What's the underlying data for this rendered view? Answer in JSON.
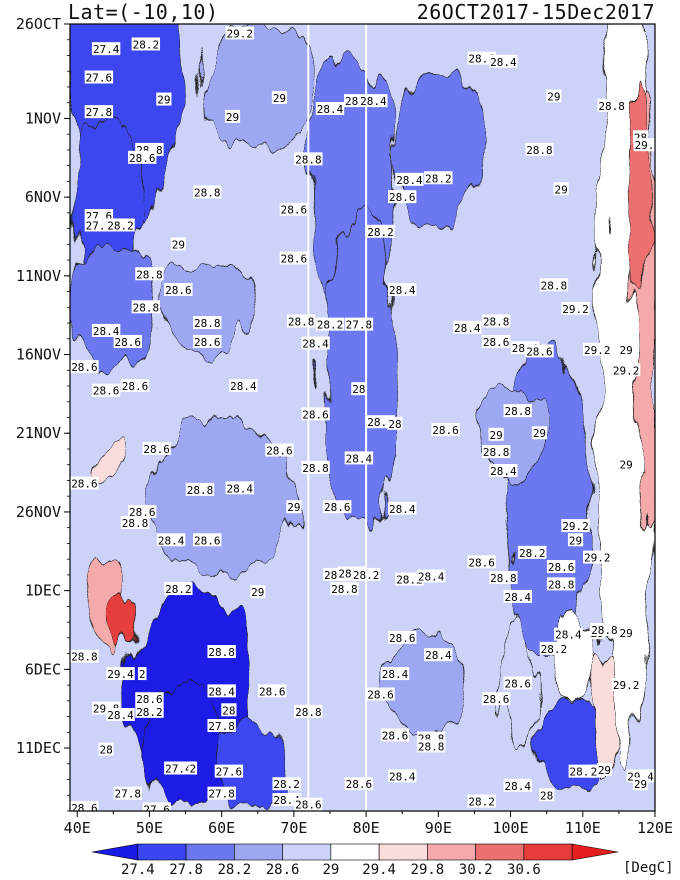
{
  "header": {
    "left": "Lat=(-10,10)",
    "right": "26OCT2017-15Dec2017"
  },
  "chart_data": {
    "type": "heatmap",
    "title": "Lat=(-10,10)",
    "subtitle": "26OCT2017-15Dec2017",
    "x_ticks": [
      "40E",
      "50E",
      "60E",
      "70E",
      "80E",
      "90E",
      "100E",
      "110E",
      "120E"
    ],
    "x_tick_values": [
      40,
      50,
      60,
      70,
      80,
      90,
      100,
      110,
      120
    ],
    "y_ticks": [
      "26OCT",
      "1NOV",
      "6NOV",
      "11NOV",
      "16NOV",
      "21NOV",
      "26NOV",
      "1DEC",
      "6DEC",
      "11DEC"
    ],
    "y_tick_values": [
      0,
      6,
      11,
      16,
      21,
      26,
      31,
      36,
      41,
      46
    ],
    "xlim": [
      39,
      120
    ],
    "ylim": [
      0,
      50
    ],
    "colorbar": {
      "levels": [
        "27.4",
        "27.8",
        "28.2",
        "28.6",
        "29",
        "29.4",
        "29.8",
        "30.2",
        "30.6"
      ],
      "unit": "[DegC]",
      "colors": [
        "#1a1ae6",
        "#3c46f0",
        "#6c78f0",
        "#9ea8f2",
        "#ccd2f8",
        "#ffffff",
        "#fadcdc",
        "#f4aaaa",
        "#ec7070",
        "#e63c3c",
        "#e61e1e"
      ]
    },
    "reference_lines_x": [
      72,
      80
    ],
    "contour_labels": [
      {
        "x": 44,
        "d": 1.6,
        "t": "27.4"
      },
      {
        "x": 49.5,
        "d": 1.3,
        "t": "28.2"
      },
      {
        "x": 62.5,
        "d": 0.6,
        "t": "29.2"
      },
      {
        "x": 43,
        "d": 3.4,
        "t": "27.6"
      },
      {
        "x": 43,
        "d": 5.6,
        "t": "27.8"
      },
      {
        "x": 52,
        "d": 4.8,
        "t": "29"
      },
      {
        "x": 61.5,
        "d": 5.9,
        "t": "29"
      },
      {
        "x": 68,
        "d": 4.7,
        "t": "29"
      },
      {
        "x": 75,
        "d": 5.4,
        "t": "28.4"
      },
      {
        "x": 78,
        "d": 4.9,
        "t": "28"
      },
      {
        "x": 81,
        "d": 4.9,
        "t": "28.4"
      },
      {
        "x": 96,
        "d": 2.2,
        "t": "28.8"
      },
      {
        "x": 99,
        "d": 2.4,
        "t": "28.4"
      },
      {
        "x": 106,
        "d": 4.6,
        "t": "29"
      },
      {
        "x": 114,
        "d": 5.2,
        "t": "28.8"
      },
      {
        "x": 50,
        "d": 8.0,
        "t": "28.8"
      },
      {
        "x": 49,
        "d": 8.5,
        "t": "28.6"
      },
      {
        "x": 72,
        "d": 8.6,
        "t": "28.8"
      },
      {
        "x": 104,
        "d": 8.0,
        "t": "28.8"
      },
      {
        "x": 118,
        "d": 7.2,
        "t": "28"
      },
      {
        "x": 119,
        "d": 7.7,
        "t": "29.6"
      },
      {
        "x": 86,
        "d": 9.9,
        "t": "28.4"
      },
      {
        "x": 90,
        "d": 9.8,
        "t": "28.2"
      },
      {
        "x": 85,
        "d": 11.0,
        "t": "28.6"
      },
      {
        "x": 107,
        "d": 10.5,
        "t": "29"
      },
      {
        "x": 58,
        "d": 10.7,
        "t": "28.8"
      },
      {
        "x": 70,
        "d": 11.8,
        "t": "28.6"
      },
      {
        "x": 43,
        "d": 12.2,
        "t": "27.6"
      },
      {
        "x": 43,
        "d": 12.8,
        "t": "27.7"
      },
      {
        "x": 46,
        "d": 12.8,
        "t": "28.2"
      },
      {
        "x": 54,
        "d": 14.0,
        "t": "29"
      },
      {
        "x": 82,
        "d": 13.2,
        "t": "28.2"
      },
      {
        "x": 70,
        "d": 14.9,
        "t": "28.6"
      },
      {
        "x": 50,
        "d": 15.9,
        "t": "28.8"
      },
      {
        "x": 54,
        "d": 16.9,
        "t": "28.6"
      },
      {
        "x": 85,
        "d": 16.9,
        "t": "28.4"
      },
      {
        "x": 106,
        "d": 16.6,
        "t": "28.8"
      },
      {
        "x": 49.5,
        "d": 18.0,
        "t": "28.8"
      },
      {
        "x": 109,
        "d": 18.1,
        "t": "29.2"
      },
      {
        "x": 58,
        "d": 19.0,
        "t": "28.8"
      },
      {
        "x": 71,
        "d": 18.9,
        "t": "28.8"
      },
      {
        "x": 75,
        "d": 19.1,
        "t": "28.2"
      },
      {
        "x": 79,
        "d": 19.1,
        "t": "27.8"
      },
      {
        "x": 94,
        "d": 19.3,
        "t": "28.4"
      },
      {
        "x": 98,
        "d": 18.9,
        "t": "28.8"
      },
      {
        "x": 44,
        "d": 19.5,
        "t": "28.4"
      },
      {
        "x": 47,
        "d": 20.2,
        "t": "28.6"
      },
      {
        "x": 58,
        "d": 20.2,
        "t": "28.6"
      },
      {
        "x": 73,
        "d": 20.3,
        "t": "28.4"
      },
      {
        "x": 98,
        "d": 20.2,
        "t": "28.6"
      },
      {
        "x": 102,
        "d": 20.6,
        "t": "28.6"
      },
      {
        "x": 104,
        "d": 20.8,
        "t": "28.6"
      },
      {
        "x": 112,
        "d": 20.7,
        "t": "29.2"
      },
      {
        "x": 116,
        "d": 20.7,
        "t": "29"
      },
      {
        "x": 41,
        "d": 21.8,
        "t": "28.6"
      },
      {
        "x": 116,
        "d": 22.0,
        "t": "29.2"
      },
      {
        "x": 44,
        "d": 23.3,
        "t": "28.6"
      },
      {
        "x": 48,
        "d": 23.0,
        "t": "28.6"
      },
      {
        "x": 63,
        "d": 23.0,
        "t": "28.4"
      },
      {
        "x": 79,
        "d": 23.2,
        "t": "28"
      },
      {
        "x": 73,
        "d": 24.8,
        "t": "28.6"
      },
      {
        "x": 82,
        "d": 25.3,
        "t": "28.6"
      },
      {
        "x": 101,
        "d": 24.6,
        "t": "28.8"
      },
      {
        "x": 84,
        "d": 25.4,
        "t": "28"
      },
      {
        "x": 91,
        "d": 25.8,
        "t": "28.6"
      },
      {
        "x": 98,
        "d": 26.1,
        "t": "29"
      },
      {
        "x": 104,
        "d": 26.0,
        "t": "29"
      },
      {
        "x": 51,
        "d": 27.0,
        "t": "28.6"
      },
      {
        "x": 68,
        "d": 27.1,
        "t": "28.6"
      },
      {
        "x": 98,
        "d": 27.2,
        "t": "28.8"
      },
      {
        "x": 79,
        "d": 27.6,
        "t": "28.4"
      },
      {
        "x": 73,
        "d": 28.2,
        "t": "28.8"
      },
      {
        "x": 116,
        "d": 28.0,
        "t": "29"
      },
      {
        "x": 99,
        "d": 28.4,
        "t": "28.4"
      },
      {
        "x": 41,
        "d": 29.2,
        "t": "28.6"
      },
      {
        "x": 57,
        "d": 29.6,
        "t": "28.8"
      },
      {
        "x": 62.5,
        "d": 29.5,
        "t": "28.4"
      },
      {
        "x": 70,
        "d": 30.7,
        "t": "29"
      },
      {
        "x": 76,
        "d": 30.7,
        "t": "28.6"
      },
      {
        "x": 85,
        "d": 30.8,
        "t": "28.4"
      },
      {
        "x": 49,
        "d": 31.0,
        "t": "28.6"
      },
      {
        "x": 48,
        "d": 31.7,
        "t": "28.8"
      },
      {
        "x": 109,
        "d": 31.9,
        "t": "29.2"
      },
      {
        "x": 53,
        "d": 32.8,
        "t": "28.4"
      },
      {
        "x": 58,
        "d": 32.8,
        "t": "28.6"
      },
      {
        "x": 109,
        "d": 32.8,
        "t": "29"
      },
      {
        "x": 103,
        "d": 33.6,
        "t": "28.2"
      },
      {
        "x": 112,
        "d": 33.9,
        "t": "29.2"
      },
      {
        "x": 96,
        "d": 34.2,
        "t": "28.6"
      },
      {
        "x": 107,
        "d": 34.5,
        "t": "28.6"
      },
      {
        "x": 76,
        "d": 35.0,
        "t": "28.6"
      },
      {
        "x": 78,
        "d": 34.9,
        "t": "28.4"
      },
      {
        "x": 80,
        "d": 35.0,
        "t": "28.2"
      },
      {
        "x": 86,
        "d": 35.3,
        "t": "28.2"
      },
      {
        "x": 89,
        "d": 35.1,
        "t": "28.4"
      },
      {
        "x": 99,
        "d": 35.2,
        "t": "28.8"
      },
      {
        "x": 107,
        "d": 35.6,
        "t": "28.8"
      },
      {
        "x": 54,
        "d": 35.9,
        "t": "28.2"
      },
      {
        "x": 77,
        "d": 35.9,
        "t": "28.8"
      },
      {
        "x": 65,
        "d": 36.1,
        "t": "29"
      },
      {
        "x": 101,
        "d": 36.4,
        "t": "28.4"
      },
      {
        "x": 108,
        "d": 38.8,
        "t": "28.4"
      },
      {
        "x": 112,
        "d": 38.7,
        "t": "29"
      },
      {
        "x": 113,
        "d": 38.5,
        "t": "28.8"
      },
      {
        "x": 116,
        "d": 38.7,
        "t": "29"
      },
      {
        "x": 85,
        "d": 39.0,
        "t": "28.6"
      },
      {
        "x": 106,
        "d": 39.7,
        "t": "28.2"
      },
      {
        "x": 60,
        "d": 39.9,
        "t": "28.8"
      },
      {
        "x": 90,
        "d": 40.1,
        "t": "28.4"
      },
      {
        "x": 41,
        "d": 40.2,
        "t": "28.8"
      },
      {
        "x": 84,
        "d": 41.3,
        "t": "28.4"
      },
      {
        "x": 46,
        "d": 41.3,
        "t": "29.4"
      },
      {
        "x": 49,
        "d": 41.3,
        "t": "2"
      },
      {
        "x": 101,
        "d": 41.9,
        "t": "28.6"
      },
      {
        "x": 116,
        "d": 42.0,
        "t": "29.2"
      },
      {
        "x": 60,
        "d": 42.4,
        "t": "28.4"
      },
      {
        "x": 67,
        "d": 42.4,
        "t": "28.6"
      },
      {
        "x": 82,
        "d": 42.6,
        "t": "28.6"
      },
      {
        "x": 98,
        "d": 42.9,
        "t": "28.6"
      },
      {
        "x": 50,
        "d": 42.9,
        "t": "28.6"
      },
      {
        "x": 44,
        "d": 43.5,
        "t": "29.8"
      },
      {
        "x": 50,
        "d": 43.7,
        "t": "28.2"
      },
      {
        "x": 46,
        "d": 43.9,
        "t": "28.4"
      },
      {
        "x": 61,
        "d": 43.6,
        "t": "28"
      },
      {
        "x": 72,
        "d": 43.7,
        "t": "28.8"
      },
      {
        "x": 60,
        "d": 44.6,
        "t": "27.8"
      },
      {
        "x": 84,
        "d": 45.2,
        "t": "28.6"
      },
      {
        "x": 89,
        "d": 45.4,
        "t": "28.8"
      },
      {
        "x": 89,
        "d": 45.9,
        "t": "28.8"
      },
      {
        "x": 44,
        "d": 46.1,
        "t": "28"
      },
      {
        "x": 54,
        "d": 47.3,
        "t": "27.4"
      },
      {
        "x": 56,
        "d": 47.3,
        "t": "2"
      },
      {
        "x": 61,
        "d": 47.5,
        "t": "27.6"
      },
      {
        "x": 85,
        "d": 47.8,
        "t": "28.4"
      },
      {
        "x": 110,
        "d": 47.5,
        "t": "28.2"
      },
      {
        "x": 112,
        "d": 47.5,
        "t": "28"
      },
      {
        "x": 113,
        "d": 47.4,
        "t": "29"
      },
      {
        "x": 118,
        "d": 47.8,
        "t": "29.4"
      },
      {
        "x": 69,
        "d": 48.3,
        "t": "28.2"
      },
      {
        "x": 79,
        "d": 48.3,
        "t": "28.6"
      },
      {
        "x": 101,
        "d": 48.4,
        "t": "28.4"
      },
      {
        "x": 118,
        "d": 48.3,
        "t": "29"
      },
      {
        "x": 47,
        "d": 48.9,
        "t": "27.8"
      },
      {
        "x": 60,
        "d": 48.9,
        "t": "27.8"
      },
      {
        "x": 69,
        "d": 49.3,
        "t": "28.4"
      },
      {
        "x": 72,
        "d": 49.6,
        "t": "28.6"
      },
      {
        "x": 96,
        "d": 49.4,
        "t": "28.2"
      },
      {
        "x": 105,
        "d": 49.0,
        "t": "28"
      },
      {
        "x": 41,
        "d": 49.8,
        "t": "28.6"
      },
      {
        "x": 51,
        "d": 49.9,
        "t": "27.6"
      }
    ]
  }
}
